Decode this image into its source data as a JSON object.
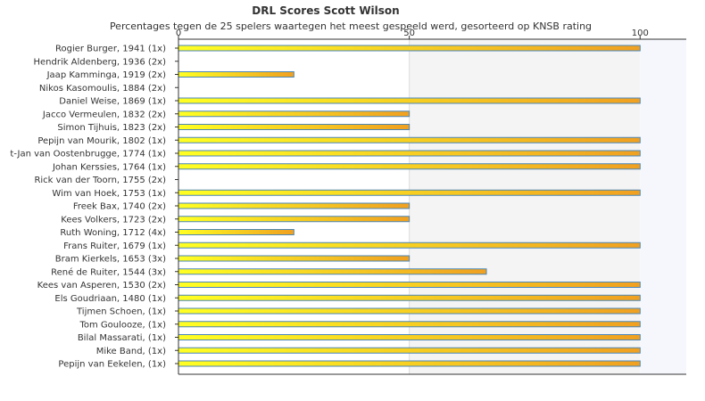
{
  "chart_data": {
    "type": "bar",
    "orientation": "horizontal",
    "title": "DRL Scores Scott Wilson",
    "subtitle": "Percentages tegen de 25 spelers waartegen het meest gespeeld werd, gesorteerd op KNSB rating",
    "xlim": [
      0,
      110
    ],
    "xticks": [
      0,
      50,
      100
    ],
    "xtick_labels": [
      "0",
      "50",
      "100"
    ],
    "axis_position": "top",
    "grid": false,
    "legend": "none",
    "categories": [
      "Rogier Burger, 1941 (1x)",
      "Hendrik Aldenberg, 1936 (2x)",
      "Jaap Kamminga, 1919 (2x)",
      "Nikos Kasomoulis, 1884 (2x)",
      "Daniel Weise, 1869 (1x)",
      "Jacco Vermeulen, 1832 (2x)",
      "Simon Tijhuis, 1823 (2x)",
      "Pepijn van Mourik, 1802 (1x)",
      "t-Jan van Oostenbrugge, 1774 (1x)",
      "Johan Kerssies, 1764 (1x)",
      "Rick van der Toorn, 1755 (2x)",
      "Wim van Hoek, 1753 (1x)",
      "Freek Bax, 1740 (2x)",
      "Kees Volkers, 1723 (2x)",
      "Ruth Woning, 1712 (4x)",
      "Frans Ruiter, 1679 (1x)",
      "Bram Kierkels, 1653 (3x)",
      "René de Ruiter, 1544 (3x)",
      "Kees van Asperen, 1530 (2x)",
      "Els Goudriaan, 1480 (1x)",
      "Tijmen Schoen,  (1x)",
      "Tom Goulooze,  (1x)",
      "Bilal Massarati,  (1x)",
      "Mike Band,  (1x)",
      "Pepijn van Eekelen,  (1x)"
    ],
    "values": [
      100,
      0,
      25,
      0,
      100,
      50,
      50,
      100,
      100,
      100,
      0,
      100,
      50,
      50,
      25,
      100,
      50,
      66.7,
      100,
      100,
      100,
      100,
      100,
      100,
      100
    ],
    "colors": {
      "bar_start": "#ffff22",
      "bar_end": "#f0a020",
      "bar_stroke": "#4a86b8",
      "band_light": "#f4f4f4",
      "band_right": "#f5f7fc",
      "axis": "#333333"
    }
  }
}
